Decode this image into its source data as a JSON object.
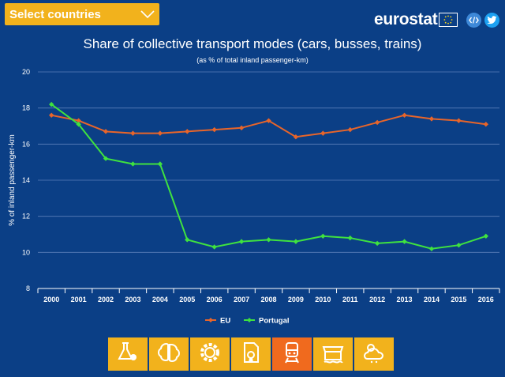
{
  "header": {
    "select_label": "Select countries",
    "brand": "eurostat"
  },
  "icons": {
    "chevron": "chevron-down-icon",
    "flag": "eu-flag-icon",
    "embed": "embed-code-icon",
    "twitter": "twitter-icon"
  },
  "colors": {
    "background": "#0b3f86",
    "accent": "#f2b21c",
    "active": "#f06a1e",
    "eu": "#e8652a",
    "portugal": "#3fe23f"
  },
  "chart_data": {
    "type": "line",
    "title": "Share of collective transport modes (cars, busses, trains)",
    "subtitle": "(as % of total inland passenger-km)",
    "xlabel": "",
    "ylabel": "% of inland passenger-km",
    "categories": [
      "2000",
      "2001",
      "2002",
      "2003",
      "2004",
      "2005",
      "2006",
      "2007",
      "2008",
      "2009",
      "2010",
      "2011",
      "2012",
      "2013",
      "2014",
      "2015",
      "2016"
    ],
    "yticks": [
      "8",
      "10",
      "12",
      "14",
      "16",
      "18",
      "20"
    ],
    "ylim": [
      8,
      20
    ],
    "grid": true,
    "legend_position": "bottom-center",
    "series": [
      {
        "name": "EU",
        "color": "#e8652a",
        "values": [
          17.6,
          17.3,
          16.7,
          16.6,
          16.6,
          16.7,
          16.8,
          16.9,
          17.3,
          16.4,
          16.6,
          16.8,
          17.2,
          17.6,
          17.4,
          17.3,
          17.1
        ]
      },
      {
        "name": "Portugal",
        "color": "#3fe23f",
        "values": [
          18.2,
          17.1,
          15.2,
          14.9,
          14.9,
          10.7,
          10.3,
          10.6,
          10.7,
          10.6,
          10.9,
          10.8,
          10.5,
          10.6,
          10.2,
          10.4,
          10.9
        ]
      }
    ]
  },
  "toolbar": {
    "items": [
      {
        "name": "chemistry-icon",
        "active": false
      },
      {
        "name": "brain-icon",
        "active": false
      },
      {
        "name": "gear-icon",
        "active": false
      },
      {
        "name": "certificate-icon",
        "active": false
      },
      {
        "name": "train-icon",
        "active": true
      },
      {
        "name": "store-icon",
        "active": false
      },
      {
        "name": "weather-icon",
        "active": false
      }
    ]
  }
}
